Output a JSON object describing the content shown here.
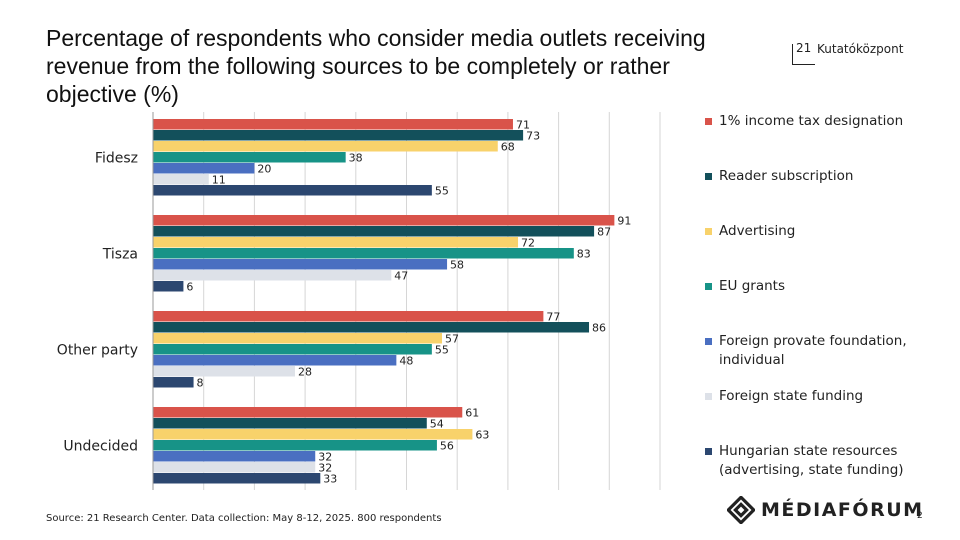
{
  "title": "Percentage of respondents who consider media outlets receiving revenue from the following sources to be completely or rather objective (%)",
  "brand": {
    "number": "21",
    "name": "Kutatóközpont"
  },
  "footer": {
    "source": "Source: 21 Research Center. Data collection: May 8-12, 2025. 800 respondents",
    "logo_text": "MÉDIAFÓRUM",
    "page_number": "2"
  },
  "chart_data": {
    "type": "bar",
    "orientation": "horizontal",
    "categories": [
      "Fidesz",
      "Tisza",
      "Other party",
      "Undecided"
    ],
    "series": [
      {
        "name": "1% income tax designation",
        "color": "#d9534a",
        "values": [
          71,
          91,
          77,
          61
        ]
      },
      {
        "name": "Reader subscription",
        "color": "#13505b",
        "values": [
          73,
          87,
          86,
          54
        ]
      },
      {
        "name": "Advertising",
        "color": "#f8d26b",
        "values": [
          68,
          72,
          57,
          63
        ]
      },
      {
        "name": "EU grants",
        "color": "#179387",
        "values": [
          38,
          83,
          55,
          56
        ]
      },
      {
        "name": "Foreign provate foundation, individual",
        "color": "#4a6fc1",
        "values": [
          20,
          58,
          48,
          32
        ]
      },
      {
        "name": "Foreign state funding",
        "color": "#dde1e8",
        "values": [
          11,
          47,
          28,
          32
        ]
      },
      {
        "name": "Hungarian state resources (advertising, state funding)",
        "color": "#2c4770",
        "values": [
          55,
          6,
          8,
          33
        ]
      }
    ],
    "xlim": [
      0,
      100
    ],
    "grid": true,
    "legend_position": "right",
    "data_labels": true
  }
}
